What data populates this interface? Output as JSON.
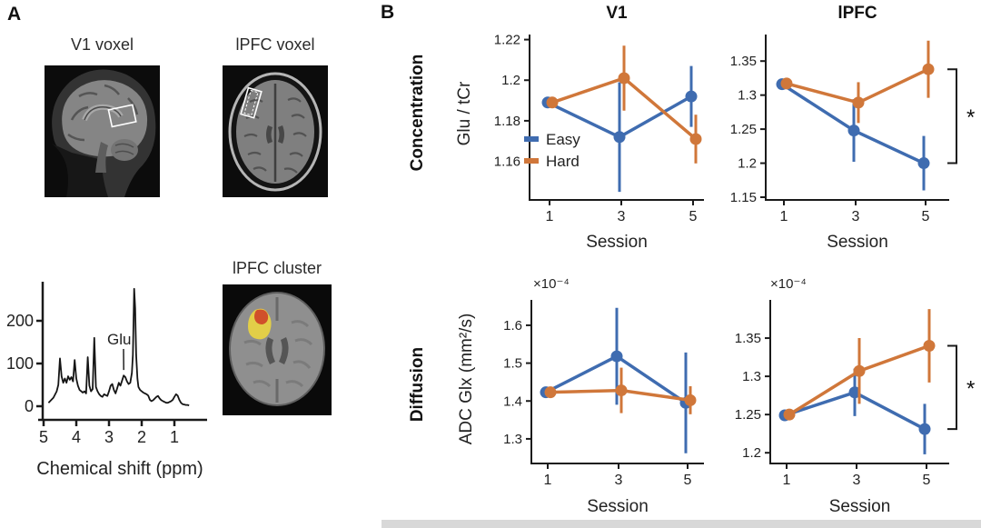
{
  "panel_a": {
    "label": "A",
    "v1_voxel_title": "V1 voxel",
    "lpfc_voxel_title": "lPFC voxel",
    "lpfc_cluster_title": "lPFC cluster",
    "cluster_colors": {
      "outer": "#e2ce48",
      "core": "#d0502a"
    }
  },
  "panel_b": {
    "label": "B",
    "legend": [
      "Easy",
      "Hard"
    ],
    "sig_star": "*"
  },
  "colors": {
    "easy": "#3F6CB0",
    "hard": "#D0773A",
    "axis": "#1a1a1a"
  },
  "chart_data": [
    {
      "id": "v1-concentration",
      "type": "line",
      "title": "V1",
      "row_label": "Concentration",
      "ylabel": "Glu / tCr",
      "xlabel": "Session",
      "x": [
        1,
        3,
        5
      ],
      "xtick_labels": [
        "1",
        "3",
        "5"
      ],
      "ylim": [
        1.141,
        1.2225
      ],
      "yticks": [
        {
          "v": 1.16,
          "l": "1.16"
        },
        {
          "v": 1.18,
          "l": "1.18"
        },
        {
          "v": 1.2,
          "l": "1.2"
        },
        {
          "v": 1.22,
          "l": "1.22"
        }
      ],
      "legend": true,
      "series": [
        {
          "name": "Easy",
          "color": "#3F6CB0",
          "values": [
            1.189,
            1.172,
            1.192
          ],
          "errors": [
            0.002,
            0.027,
            0.015
          ]
        },
        {
          "name": "Hard",
          "color": "#D0773A",
          "values": [
            1.189,
            1.201,
            1.171
          ],
          "errors": [
            0.002,
            0.016,
            0.012
          ]
        }
      ]
    },
    {
      "id": "lpfc-concentration",
      "type": "line",
      "title": "lPFC",
      "row_label": "Concentration",
      "ylabel": "",
      "xlabel": "Session",
      "x": [
        1,
        3,
        5
      ],
      "xtick_labels": [
        "1",
        "3",
        "5"
      ],
      "ylim": [
        1.146,
        1.389
      ],
      "yticks": [
        {
          "v": 1.15,
          "l": "1.15"
        },
        {
          "v": 1.2,
          "l": "1.2"
        },
        {
          "v": 1.25,
          "l": "1.25"
        },
        {
          "v": 1.3,
          "l": "1.3"
        },
        {
          "v": 1.35,
          "l": "1.35"
        }
      ],
      "series": [
        {
          "name": "Easy",
          "color": "#3F6CB0",
          "values": [
            1.316,
            1.248,
            1.2
          ],
          "errors": [
            0.003,
            0.046,
            0.04
          ]
        },
        {
          "name": "Hard",
          "color": "#D0773A",
          "values": [
            1.317,
            1.289,
            1.338
          ],
          "errors": [
            0.003,
            0.03,
            0.042
          ]
        }
      ],
      "annotation": {
        "type": "bracket",
        "label": "*",
        "from": 1.338,
        "to": 1.2
      }
    },
    {
      "id": "v1-diffusion",
      "type": "line",
      "title": "V1",
      "row_label": "Diffusion",
      "ylabel": "ADC Glx (mm²/s)",
      "xlabel": "Session",
      "multiplier": "×10⁻⁴",
      "x": [
        1,
        3,
        5
      ],
      "xtick_labels": [
        "1",
        "3",
        "5"
      ],
      "ylim": [
        1.235,
        1.667
      ],
      "yticks": [
        {
          "v": 1.3,
          "l": "1.3"
        },
        {
          "v": 1.4,
          "l": "1.4"
        },
        {
          "v": 1.5,
          "l": "1.5"
        },
        {
          "v": 1.6,
          "l": "1.6"
        }
      ],
      "series": [
        {
          "name": "Easy",
          "color": "#3F6CB0",
          "values": [
            1.423,
            1.518,
            1.395
          ],
          "errors": [
            0.003,
            0.128,
            0.133
          ]
        },
        {
          "name": "Hard",
          "color": "#D0773A",
          "values": [
            1.423,
            1.428,
            1.402
          ],
          "errors": [
            0.003,
            0.06,
            0.037
          ]
        }
      ]
    },
    {
      "id": "lpfc-diffusion",
      "type": "line",
      "title": "lPFC",
      "row_label": "Diffusion",
      "ylabel": "",
      "xlabel": "Session",
      "multiplier": "×10⁻⁴",
      "x": [
        1,
        3,
        5
      ],
      "xtick_labels": [
        "1",
        "3",
        "5"
      ],
      "ylim": [
        1.186,
        1.4
      ],
      "yticks": [
        {
          "v": 1.2,
          "l": "1.2"
        },
        {
          "v": 1.25,
          "l": "1.25"
        },
        {
          "v": 1.3,
          "l": "1.3"
        },
        {
          "v": 1.35,
          "l": "1.35"
        }
      ],
      "series": [
        {
          "name": "Easy",
          "color": "#3F6CB0",
          "values": [
            1.249,
            1.279,
            1.231
          ],
          "errors": [
            0.003,
            0.031,
            0.033
          ]
        },
        {
          "name": "Hard",
          "color": "#D0773A",
          "values": [
            1.25,
            1.307,
            1.34
          ],
          "errors": [
            0.003,
            0.043,
            0.048
          ]
        }
      ],
      "annotation": {
        "type": "bracket",
        "label": "*",
        "from": 1.34,
        "to": 1.231
      }
    },
    {
      "id": "spectrum",
      "type": "line",
      "title": "",
      "xlabel": "Chemical shift (ppm)",
      "x_reversed": true,
      "xticks": [
        {
          "v": 5,
          "l": "5"
        },
        {
          "v": 4,
          "l": "4"
        },
        {
          "v": 3,
          "l": "3"
        },
        {
          "v": 2,
          "l": "2"
        },
        {
          "v": 1,
          "l": "1"
        }
      ],
      "yticks": [
        {
          "v": 0,
          "l": "0"
        },
        {
          "v": 100,
          "l": "100"
        },
        {
          "v": 200,
          "l": "200"
        }
      ],
      "annotation": {
        "text": "Glu",
        "at_ppm": 2.55
      },
      "points": [
        [
          4.85,
          8
        ],
        [
          4.7,
          20
        ],
        [
          4.6,
          35
        ],
        [
          4.55,
          50
        ],
        [
          4.5,
          112
        ],
        [
          4.45,
          70
        ],
        [
          4.4,
          55
        ],
        [
          4.35,
          65
        ],
        [
          4.3,
          55
        ],
        [
          4.25,
          70
        ],
        [
          4.2,
          62
        ],
        [
          4.15,
          68
        ],
        [
          4.1,
          58
        ],
        [
          4.05,
          108
        ],
        [
          4.0,
          65
        ],
        [
          3.95,
          48
        ],
        [
          3.9,
          38
        ],
        [
          3.8,
          32
        ],
        [
          3.75,
          35
        ],
        [
          3.7,
          30
        ],
        [
          3.65,
          115
        ],
        [
          3.6,
          48
        ],
        [
          3.55,
          35
        ],
        [
          3.5,
          40
        ],
        [
          3.45,
          160
        ],
        [
          3.42,
          90
        ],
        [
          3.4,
          45
        ],
        [
          3.35,
          35
        ],
        [
          3.3,
          28
        ],
        [
          3.25,
          24
        ],
        [
          3.2,
          22
        ],
        [
          3.15,
          28
        ],
        [
          3.1,
          26
        ],
        [
          3.05,
          24
        ],
        [
          3.0,
          35
        ],
        [
          2.95,
          48
        ],
        [
          2.9,
          52
        ],
        [
          2.85,
          38
        ],
        [
          2.8,
          30
        ],
        [
          2.75,
          42
        ],
        [
          2.7,
          55
        ],
        [
          2.65,
          48
        ],
        [
          2.6,
          60
        ],
        [
          2.55,
          72
        ],
        [
          2.5,
          68
        ],
        [
          2.45,
          58
        ],
        [
          2.4,
          52
        ],
        [
          2.35,
          55
        ],
        [
          2.3,
          78
        ],
        [
          2.27,
          120
        ],
        [
          2.23,
          275
        ],
        [
          2.2,
          230
        ],
        [
          2.17,
          120
        ],
        [
          2.13,
          65
        ],
        [
          2.1,
          45
        ],
        [
          2.05,
          38
        ],
        [
          2.0,
          35
        ],
        [
          1.95,
          32
        ],
        [
          1.9,
          30
        ],
        [
          1.85,
          28
        ],
        [
          1.8,
          25
        ],
        [
          1.75,
          15
        ],
        [
          1.7,
          12
        ],
        [
          1.65,
          14
        ],
        [
          1.6,
          18
        ],
        [
          1.55,
          22
        ],
        [
          1.5,
          24
        ],
        [
          1.45,
          18
        ],
        [
          1.4,
          14
        ],
        [
          1.35,
          12
        ],
        [
          1.3,
          10
        ],
        [
          1.25,
          8
        ],
        [
          1.2,
          8
        ],
        [
          1.15,
          10
        ],
        [
          1.1,
          12
        ],
        [
          1.05,
          15
        ],
        [
          1.0,
          22
        ],
        [
          0.95,
          28
        ],
        [
          0.9,
          25
        ],
        [
          0.85,
          15
        ],
        [
          0.8,
          8
        ],
        [
          0.75,
          5
        ],
        [
          0.7,
          4
        ],
        [
          0.65,
          3
        ],
        [
          0.6,
          3
        ],
        [
          0.55,
          2
        ]
      ]
    }
  ]
}
